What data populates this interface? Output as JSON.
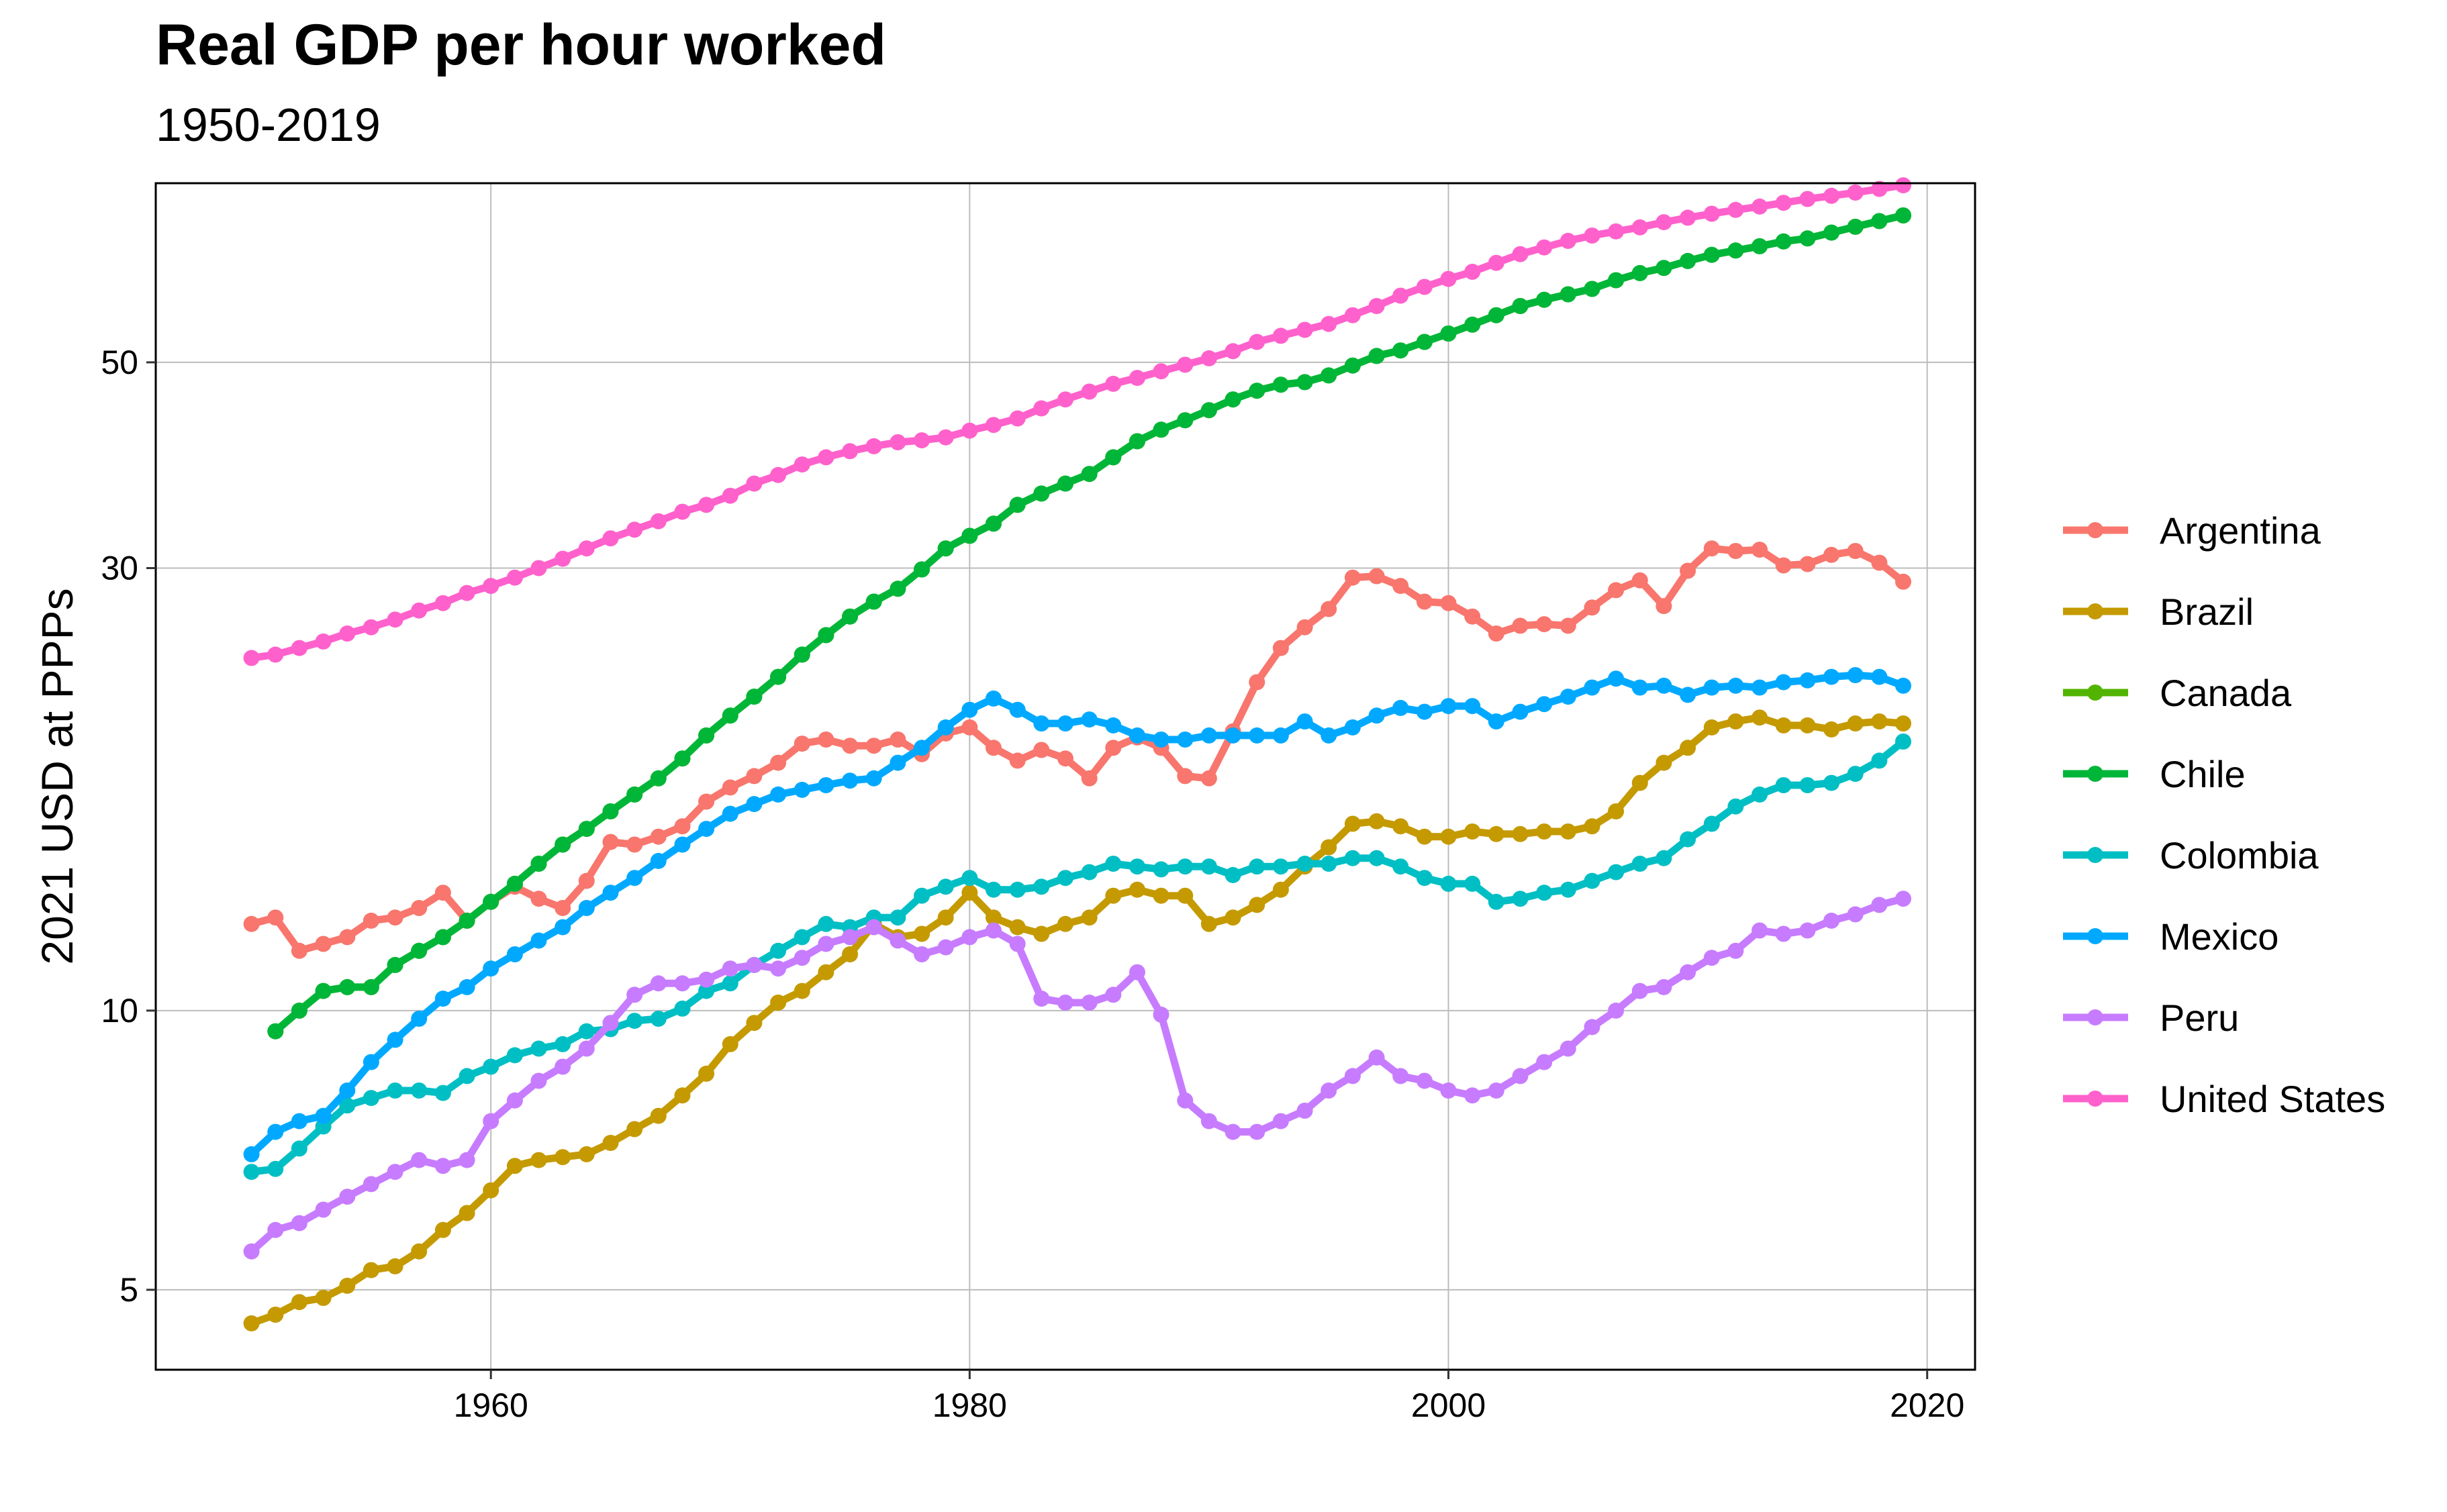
{
  "chart_data": {
    "type": "line",
    "title": "Real GDP per hour worked",
    "subtitle": "1950-2019",
    "xlabel": "",
    "ylabel": "2021 USD at PPPs",
    "y_scale": "log",
    "xlim": [
      1946,
      2022
    ],
    "ylim": [
      4.1,
      78
    ],
    "x_ticks": [
      1960,
      1980,
      2000,
      2020
    ],
    "y_ticks": [
      5,
      10,
      30,
      50
    ],
    "grid": true,
    "legend_position": "right",
    "series": [
      {
        "name": "Argentina",
        "color": "#F8766D",
        "start": 1950,
        "values": [
          12.4,
          12.6,
          11.6,
          11.8,
          12.0,
          12.5,
          12.6,
          12.9,
          13.4,
          12.5,
          13.1,
          13.6,
          13.2,
          12.9,
          13.8,
          15.2,
          15.1,
          15.4,
          15.8,
          16.8,
          17.4,
          17.9,
          18.5,
          19.4,
          19.6,
          19.3,
          19.3,
          19.6,
          18.9,
          19.9,
          20.2,
          19.2,
          18.6,
          19.1,
          18.7,
          17.8,
          19.2,
          19.7,
          19.2,
          17.9,
          17.8,
          20.0,
          22.6,
          24.6,
          25.9,
          27.1,
          29.3,
          29.4,
          28.7,
          27.6,
          27.5,
          26.6,
          25.5,
          26.0,
          26.1,
          26.0,
          27.2,
          28.4,
          29.1,
          27.3,
          29.8,
          31.5,
          31.3,
          31.4,
          30.2,
          30.3,
          31.0,
          31.3,
          30.4,
          29.0
        ]
      },
      {
        "name": "Brazil",
        "color": "#C49A00",
        "start": 1950,
        "values": [
          4.6,
          4.7,
          4.85,
          4.9,
          5.05,
          5.25,
          5.3,
          5.5,
          5.8,
          6.05,
          6.4,
          6.8,
          6.9,
          6.95,
          7.0,
          7.2,
          7.45,
          7.7,
          8.1,
          8.55,
          9.2,
          9.7,
          10.2,
          10.5,
          11.0,
          11.5,
          12.4,
          12.0,
          12.1,
          12.6,
          13.4,
          12.6,
          12.3,
          12.1,
          12.4,
          12.6,
          13.3,
          13.5,
          13.3,
          13.3,
          12.4,
          12.6,
          13.0,
          13.5,
          14.3,
          15.0,
          15.9,
          16.0,
          15.8,
          15.4,
          15.4,
          15.6,
          15.5,
          15.5,
          15.6,
          15.6,
          15.8,
          16.4,
          17.6,
          18.5,
          19.2,
          20.2,
          20.5,
          20.7,
          20.3,
          20.3,
          20.1,
          20.4,
          20.5,
          20.4
        ]
      },
      {
        "name": "Canada",
        "color": "#53B400",
        "start": 1951,
        "values": [
          9.5,
          10.0,
          10.5,
          10.6,
          10.6,
          11.2,
          11.6,
          12.0,
          12.5,
          13.1,
          13.7,
          14.4,
          15.1,
          15.7,
          16.4,
          17.1,
          17.8,
          18.7,
          19.8,
          20.8,
          21.8,
          22.9,
          24.2,
          25.4,
          26.6,
          27.6,
          28.5,
          29.9,
          31.5,
          32.5,
          33.5,
          35.1,
          36.1,
          37.0,
          37.9,
          39.5,
          41.1,
          42.3,
          43.3,
          44.4,
          45.6,
          46.6,
          47.3,
          47.6,
          48.4,
          49.6,
          50.8,
          51.5,
          52.6,
          53.7,
          54.9,
          56.2,
          57.5,
          58.4,
          59.2,
          60.0,
          61.3,
          62.4,
          63.2,
          64.3,
          65.3,
          66.0,
          66.7,
          67.5,
          68.0,
          69.0,
          70.0,
          71.0,
          72.0
        ]
      },
      {
        "name": "Chile",
        "color": "#00B638",
        "start": 1951,
        "values": [
          9.5,
          10.0,
          10.5,
          10.6,
          10.6,
          11.2,
          11.6,
          12.0,
          12.5,
          13.1,
          13.7,
          14.4,
          15.1,
          15.7,
          16.4,
          17.1,
          17.8,
          18.7,
          19.8,
          20.8,
          21.8,
          22.9,
          24.2,
          25.4,
          26.6,
          27.6,
          28.5,
          29.9,
          31.5,
          32.5,
          33.5,
          35.1,
          36.1,
          37.0,
          37.9,
          39.5,
          41.1,
          42.3,
          43.3,
          44.4,
          45.6,
          46.6,
          47.3,
          47.6,
          48.4,
          49.6,
          50.8,
          51.5,
          52.6,
          53.7,
          54.9,
          56.2,
          57.5,
          58.4,
          59.2,
          60.0,
          61.3,
          62.4,
          63.2,
          64.3,
          65.3,
          66.0,
          66.7,
          67.5,
          68.0,
          69.0,
          70.0,
          71.0,
          72.0
        ]
      },
      {
        "name": "Colombia",
        "color": "#00BFC4",
        "start": 1950,
        "values": [
          6.7,
          6.75,
          7.1,
          7.5,
          7.9,
          8.05,
          8.2,
          8.2,
          8.15,
          8.5,
          8.7,
          8.95,
          9.1,
          9.2,
          9.5,
          9.55,
          9.75,
          9.8,
          10.05,
          10.5,
          10.7,
          11.2,
          11.6,
          12.0,
          12.4,
          12.3,
          12.6,
          12.6,
          13.3,
          13.6,
          13.9,
          13.5,
          13.5,
          13.6,
          13.9,
          14.1,
          14.4,
          14.3,
          14.2,
          14.3,
          14.3,
          14.0,
          14.3,
          14.3,
          14.4,
          14.4,
          14.6,
          14.6,
          14.3,
          13.9,
          13.7,
          13.7,
          13.1,
          13.2,
          13.4,
          13.5,
          13.8,
          14.1,
          14.4,
          14.6,
          15.3,
          15.9,
          16.6,
          17.1,
          17.5,
          17.5,
          17.6,
          18.0,
          18.6,
          19.5
        ]
      },
      {
        "name": "Mexico",
        "color": "#00A9FF",
        "start": 1950,
        "values": [
          7.0,
          7.4,
          7.6,
          7.7,
          8.2,
          8.8,
          9.3,
          9.8,
          10.3,
          10.6,
          11.1,
          11.5,
          11.9,
          12.3,
          12.9,
          13.4,
          13.9,
          14.5,
          15.1,
          15.7,
          16.3,
          16.7,
          17.1,
          17.3,
          17.5,
          17.7,
          17.8,
          18.5,
          19.2,
          20.2,
          21.1,
          21.7,
          21.1,
          20.4,
          20.4,
          20.6,
          20.3,
          19.8,
          19.6,
          19.6,
          19.8,
          19.8,
          19.8,
          19.8,
          20.5,
          19.8,
          20.2,
          20.8,
          21.2,
          21.0,
          21.3,
          21.3,
          20.5,
          21.0,
          21.4,
          21.8,
          22.3,
          22.8,
          22.3,
          22.4,
          21.9,
          22.3,
          22.4,
          22.3,
          22.6,
          22.7,
          22.9,
          23.0,
          22.9,
          22.4
        ]
      },
      {
        "name": "Peru",
        "color": "#C77CFF",
        "start": 1950,
        "values": [
          5.5,
          5.8,
          5.9,
          6.1,
          6.3,
          6.5,
          6.7,
          6.9,
          6.8,
          6.9,
          7.6,
          8.0,
          8.4,
          8.7,
          9.1,
          9.7,
          10.4,
          10.7,
          10.7,
          10.8,
          11.1,
          11.2,
          11.1,
          11.4,
          11.8,
          12.0,
          12.3,
          11.9,
          11.5,
          11.7,
          12.0,
          12.2,
          11.8,
          10.3,
          10.2,
          10.2,
          10.4,
          11.0,
          9.9,
          8.0,
          7.6,
          7.4,
          7.4,
          7.6,
          7.8,
          8.2,
          8.5,
          8.9,
          8.5,
          8.4,
          8.2,
          8.1,
          8.2,
          8.5,
          8.8,
          9.1,
          9.6,
          10.0,
          10.5,
          10.6,
          11.0,
          11.4,
          11.6,
          12.2,
          12.1,
          12.2,
          12.5,
          12.7,
          13.0,
          13.2
        ]
      },
      {
        "name": "United States",
        "color": "#FF61CC",
        "start": 1950,
        "values": [
          24.0,
          24.2,
          24.6,
          25.0,
          25.5,
          25.9,
          26.4,
          27.0,
          27.5,
          28.2,
          28.7,
          29.3,
          30.0,
          30.7,
          31.5,
          32.3,
          33.0,
          33.7,
          34.5,
          35.1,
          35.9,
          37.0,
          37.8,
          38.8,
          39.5,
          40.1,
          40.6,
          41.0,
          41.2,
          41.5,
          42.2,
          42.8,
          43.5,
          44.6,
          45.6,
          46.5,
          47.4,
          48.1,
          48.9,
          49.7,
          50.5,
          51.4,
          52.6,
          53.4,
          54.2,
          55.0,
          56.2,
          57.5,
          59.0,
          60.3,
          61.5,
          62.6,
          64.0,
          65.4,
          66.5,
          67.6,
          68.5,
          69.2,
          69.9,
          70.8,
          71.6,
          72.3,
          73.0,
          73.6,
          74.3,
          75.0,
          75.6,
          76.2,
          76.9,
          77.6
        ]
      }
    ]
  }
}
